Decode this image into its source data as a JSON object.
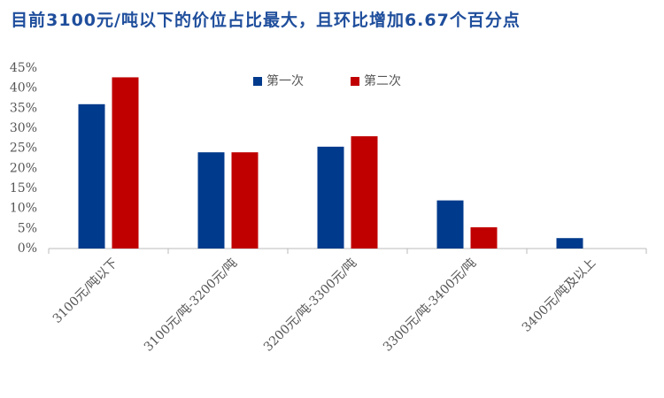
{
  "chart_data": {
    "type": "bar",
    "title": "目前3100元/吨以下的价位占比最大，且环比增加6.67个百分点",
    "categories": [
      "3100元/吨以下",
      "3100元/吨-3200元/吨",
      "3200元/吨-3300元/吨",
      "3300元/吨-3400元/吨",
      "3400元/吨及以上"
    ],
    "series": [
      {
        "name": "第一次",
        "color": "#003a8c",
        "values": [
          36,
          24,
          25.4,
          12,
          2.6
        ]
      },
      {
        "name": "第二次",
        "color": "#c00000",
        "values": [
          42.7,
          24,
          28,
          5.3,
          null
        ]
      }
    ],
    "ylim": [
      0,
      45
    ],
    "yticks": [
      {
        "value": 0,
        "label": "0%"
      },
      {
        "value": 5,
        "label": "5%"
      },
      {
        "value": 10,
        "label": "10%"
      },
      {
        "value": 15,
        "label": "15%"
      },
      {
        "value": 20,
        "label": "20%"
      },
      {
        "value": 25,
        "label": "25%"
      },
      {
        "value": 30,
        "label": "30%"
      },
      {
        "value": 35,
        "label": "35%"
      },
      {
        "value": 40,
        "label": "40%"
      },
      {
        "value": 45,
        "label": "45%"
      }
    ],
    "grid": false,
    "legend": "top"
  }
}
